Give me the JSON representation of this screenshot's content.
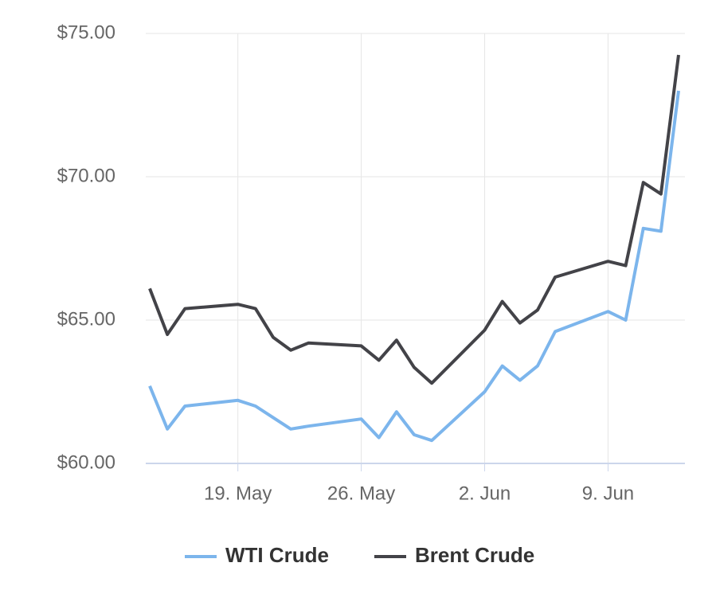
{
  "chart_data": {
    "type": "line",
    "x": [
      "14. May",
      "15. May",
      "16. May",
      "19. May",
      "20. May",
      "21. May",
      "22. May",
      "23. May",
      "26. May",
      "27. May",
      "28. May",
      "29. May",
      "30. May",
      "2. Jun",
      "3. Jun",
      "4. Jun",
      "5. Jun",
      "6. Jun",
      "9. Jun",
      "10. Jun",
      "11. Jun",
      "12. Jun",
      "13. Jun"
    ],
    "series": [
      {
        "name": "WTI Crude",
        "color": "#7cb5ec",
        "values": [
          62.7,
          61.2,
          62.0,
          62.2,
          62.0,
          61.6,
          61.2,
          61.3,
          61.55,
          60.9,
          61.8,
          61.0,
          60.8,
          62.5,
          63.4,
          62.9,
          63.4,
          64.6,
          65.3,
          65.0,
          68.2,
          68.1,
          73.0
        ]
      },
      {
        "name": "Brent Crude",
        "color": "#434348",
        "values": [
          66.1,
          64.5,
          65.4,
          65.55,
          65.4,
          64.4,
          63.95,
          64.2,
          64.1,
          63.6,
          64.3,
          63.35,
          62.8,
          64.65,
          65.65,
          64.9,
          65.35,
          66.5,
          67.05,
          66.9,
          69.8,
          69.4,
          74.25
        ]
      }
    ],
    "xticks": [
      "19. May",
      "26. May",
      "2. Jun",
      "9. Jun"
    ],
    "ylim": [
      60,
      75
    ],
    "yticks": [
      {
        "value": 60,
        "label": "$60.00"
      },
      {
        "value": 65,
        "label": "$65.00"
      },
      {
        "value": 70,
        "label": "$70.00"
      },
      {
        "value": 75,
        "label": "$75.00"
      }
    ],
    "grid": true
  }
}
